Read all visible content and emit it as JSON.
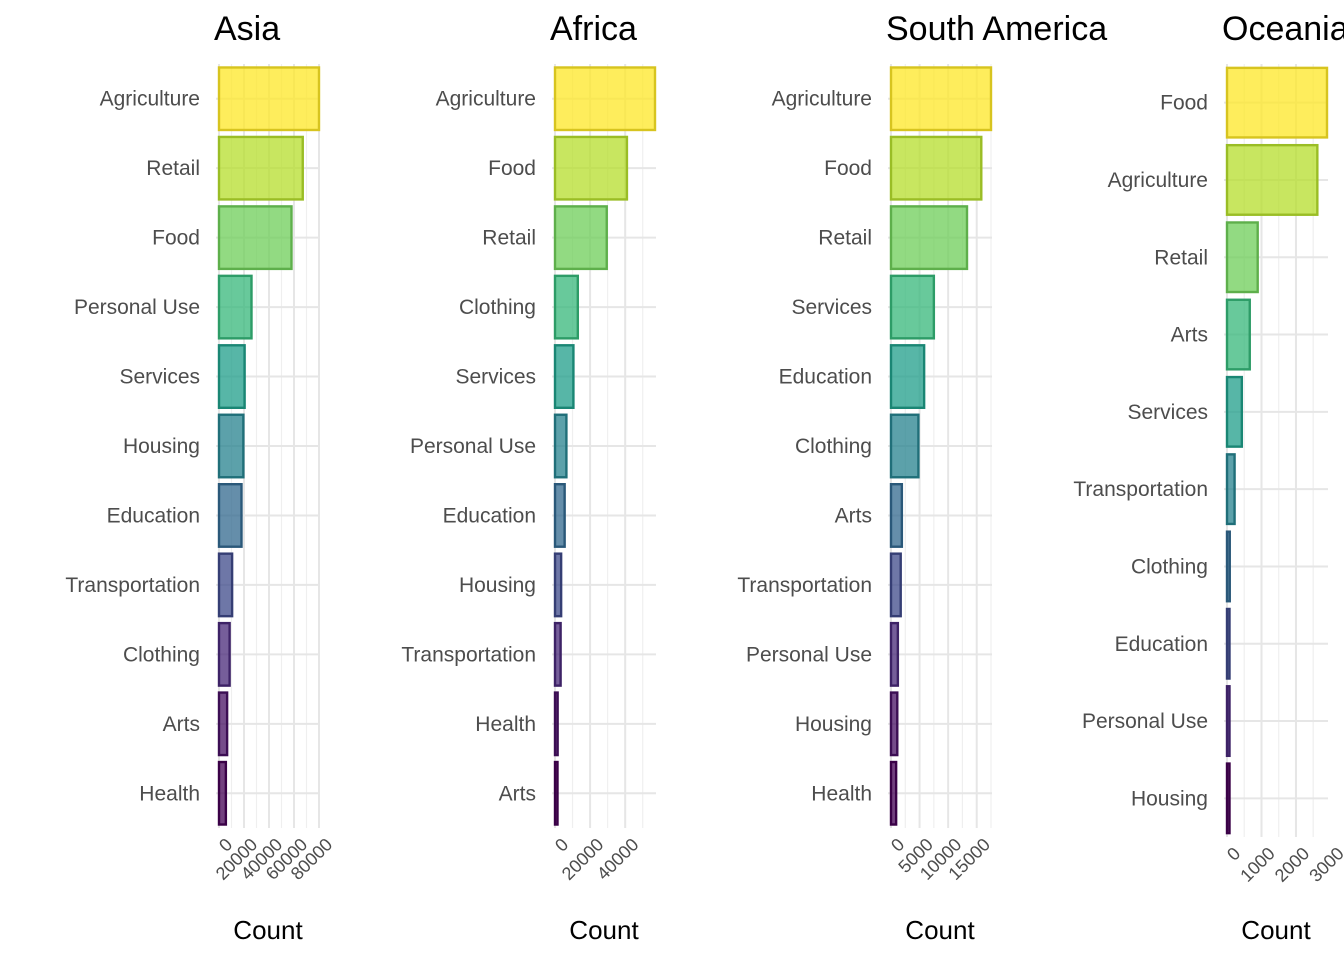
{
  "chart_data": [
    {
      "type": "bar",
      "title": "Asia",
      "xlabel": "Count",
      "ylabel": "",
      "orientation": "horizontal",
      "xlim": [
        0,
        80000
      ],
      "xticks": [
        0,
        20000,
        40000,
        60000,
        80000
      ],
      "tick_labels": [
        "0",
        "20000",
        "40000",
        "60000",
        "80000"
      ],
      "grid": true,
      "categories": [
        "Agriculture",
        "Retail",
        "Food",
        "Personal Use",
        "Services",
        "Housing",
        "Education",
        "Transportation",
        "Clothing",
        "Arts",
        "Health"
      ],
      "values": [
        80000,
        67000,
        58000,
        26000,
        20500,
        19500,
        18000,
        10500,
        8500,
        6500,
        5500
      ],
      "colors": [
        "#FDE725",
        "#B5DE2B",
        "#6ECE58",
        "#35B779",
        "#1F9E89",
        "#26828E",
        "#31688E",
        "#3E4989",
        "#482878",
        "#471063",
        "#440154"
      ]
    },
    {
      "type": "bar",
      "title": "Africa",
      "xlabel": "Count",
      "ylabel": "",
      "orientation": "horizontal",
      "xlim": [
        0,
        57000
      ],
      "xticks": [
        0,
        20000,
        40000
      ],
      "tick_labels": [
        "0",
        "20000",
        "40000"
      ],
      "grid": true,
      "categories": [
        "Agriculture",
        "Food",
        "Retail",
        "Clothing",
        "Services",
        "Personal Use",
        "Education",
        "Housing",
        "Transportation",
        "Health",
        "Arts"
      ],
      "values": [
        57000,
        41000,
        29500,
        13000,
        10500,
        6500,
        5500,
        3500,
        3200,
        1500,
        1200
      ],
      "colors": [
        "#FDE725",
        "#B5DE2B",
        "#6ECE58",
        "#35B779",
        "#1F9E89",
        "#26828E",
        "#31688E",
        "#3E4989",
        "#482878",
        "#471063",
        "#440154"
      ]
    },
    {
      "type": "bar",
      "title": "South America",
      "xlabel": "Count",
      "ylabel": "",
      "orientation": "horizontal",
      "xlim": [
        0,
        17500
      ],
      "xticks": [
        0,
        5000,
        10000,
        15000
      ],
      "tick_labels": [
        "0",
        "5000",
        "10000",
        "15000"
      ],
      "grid": true,
      "categories": [
        "Agriculture",
        "Food",
        "Retail",
        "Services",
        "Education",
        "Clothing",
        "Arts",
        "Transportation",
        "Personal Use",
        "Housing",
        "Health"
      ],
      "values": [
        17500,
        15800,
        13300,
        7500,
        5800,
        4800,
        1900,
        1700,
        1200,
        1100,
        900
      ],
      "colors": [
        "#FDE725",
        "#B5DE2B",
        "#6ECE58",
        "#35B779",
        "#1F9E89",
        "#26828E",
        "#31688E",
        "#3E4989",
        "#482878",
        "#471063",
        "#440154"
      ]
    },
    {
      "type": "bar",
      "title": "Oceania",
      "xlabel": "Count",
      "ylabel": "",
      "orientation": "horizontal",
      "xlim": [
        0,
        2900
      ],
      "xticks": [
        0,
        1000,
        2000,
        3000
      ],
      "tick_labels": [
        "0",
        "1000",
        "2000",
        "3000"
      ],
      "grid": true,
      "categories": [
        "Food",
        "Agriculture",
        "Retail",
        "Arts",
        "Services",
        "Transportation",
        "Clothing",
        "Education",
        "Personal Use",
        "Housing"
      ],
      "values": [
        2900,
        2620,
        890,
        660,
        430,
        220,
        80,
        50,
        30,
        20
      ],
      "colors": [
        "#FDE725",
        "#B5DE2B",
        "#6ECE58",
        "#35B779",
        "#1F9E89",
        "#26828E",
        "#31688E",
        "#3E4989",
        "#482878",
        "#440154"
      ]
    }
  ]
}
